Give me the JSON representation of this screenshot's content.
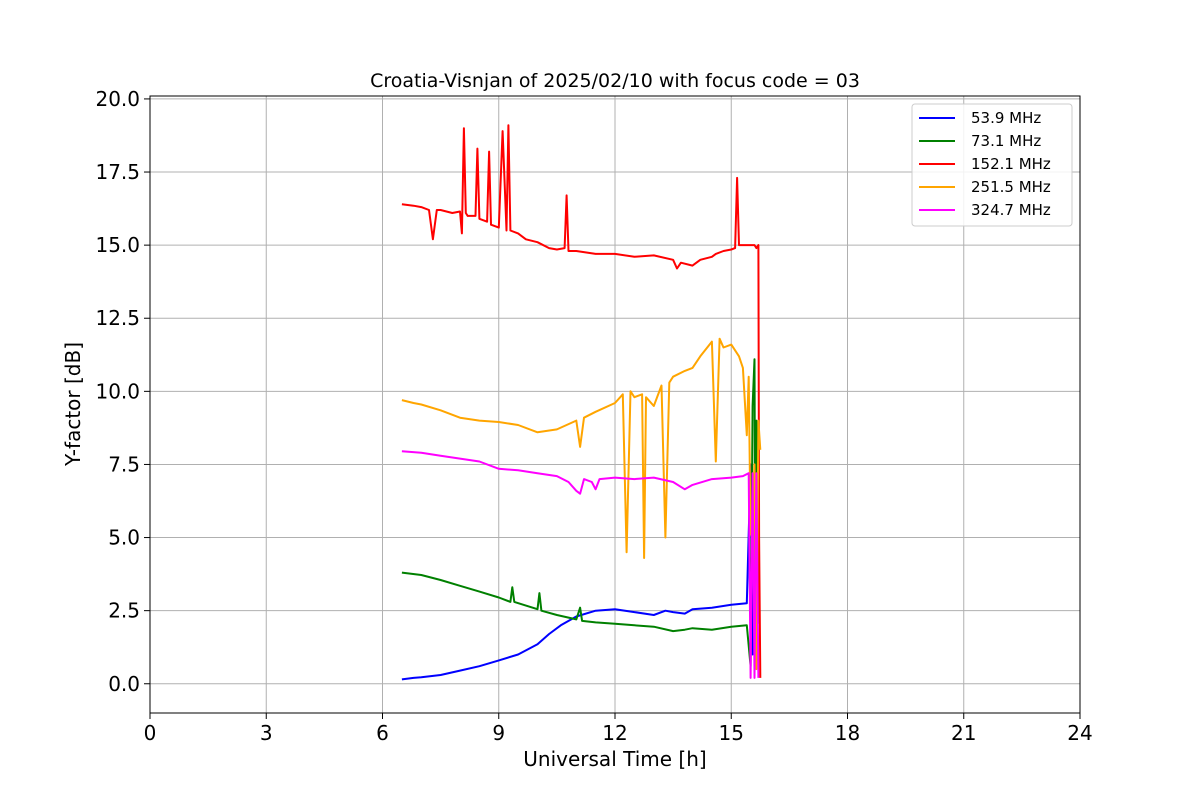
{
  "chart_data": {
    "type": "line",
    "title": "Croatia-Visnjan of 2025/02/10 with focus code = 03",
    "xlabel": "Universal Time [h]",
    "ylabel": "Y-factor [dB]",
    "xlim": [
      0,
      24
    ],
    "ylim": [
      -1.0,
      20.1
    ],
    "xticks": [
      0,
      3,
      6,
      9,
      12,
      15,
      18,
      21,
      24
    ],
    "xtick_labels": [
      "0",
      "3",
      "6",
      "9",
      "12",
      "15",
      "18",
      "21",
      "24"
    ],
    "yticks": [
      0.0,
      2.5,
      5.0,
      7.5,
      10.0,
      12.5,
      15.0,
      17.5,
      20.0
    ],
    "ytick_labels": [
      "0.0",
      "2.5",
      "5.0",
      "7.5",
      "10.0",
      "12.5",
      "15.0",
      "17.5",
      "20.0"
    ],
    "grid": true,
    "legend_position": "top-right",
    "series": [
      {
        "name": "  53.9 MHz",
        "color": "#0000ff",
        "x": [
          6.5,
          6.8,
          7.0,
          7.5,
          8.0,
          8.5,
          9.0,
          9.5,
          10.0,
          10.3,
          10.6,
          11.0,
          11.5,
          12.0,
          12.5,
          13.0,
          13.3,
          13.5,
          13.8,
          14.0,
          14.5,
          15.0,
          15.4,
          15.5,
          15.55,
          15.6,
          15.65,
          15.7
        ],
        "y": [
          0.15,
          0.2,
          0.22,
          0.3,
          0.45,
          0.6,
          0.8,
          1.0,
          1.35,
          1.7,
          2.0,
          2.3,
          2.5,
          2.55,
          2.45,
          2.35,
          2.5,
          2.45,
          2.4,
          2.55,
          2.6,
          2.7,
          2.75,
          7.5,
          1.0,
          3.8,
          2.75,
          2.7
        ]
      },
      {
        "name": "  73.1 MHz",
        "color": "#008000",
        "x": [
          6.5,
          7.0,
          7.5,
          8.0,
          8.5,
          9.0,
          9.3,
          9.35,
          9.4,
          10.0,
          10.05,
          10.1,
          10.5,
          11.0,
          11.1,
          11.15,
          11.5,
          12.0,
          12.5,
          13.0,
          13.5,
          13.8,
          14.0,
          14.5,
          15.0,
          15.4,
          15.5,
          15.55,
          15.6,
          15.62,
          15.65,
          15.7
        ],
        "y": [
          3.8,
          3.72,
          3.55,
          3.35,
          3.15,
          2.95,
          2.8,
          3.3,
          2.8,
          2.55,
          3.1,
          2.5,
          2.35,
          2.2,
          2.6,
          2.15,
          2.1,
          2.05,
          2.0,
          1.95,
          1.8,
          1.85,
          1.9,
          1.85,
          1.95,
          2.0,
          0.6,
          9.5,
          11.1,
          3.0,
          9.0,
          2.05
        ]
      },
      {
        "name": "152.1 MHz",
        "color": "#ff0000",
        "x": [
          6.5,
          6.8,
          7.0,
          7.2,
          7.3,
          7.4,
          7.5,
          7.8,
          8.0,
          8.05,
          8.1,
          8.15,
          8.2,
          8.4,
          8.45,
          8.5,
          8.7,
          8.75,
          8.8,
          9.0,
          9.1,
          9.2,
          9.25,
          9.3,
          9.5,
          9.7,
          10.0,
          10.3,
          10.5,
          10.7,
          10.75,
          10.8,
          11.0,
          11.5,
          12.0,
          12.5,
          13.0,
          13.5,
          13.6,
          13.7,
          14.0,
          14.2,
          14.5,
          14.6,
          14.8,
          15.0,
          15.1,
          15.15,
          15.2,
          15.4,
          15.6,
          15.65,
          15.7,
          15.72,
          15.75
        ],
        "y": [
          16.4,
          16.35,
          16.3,
          16.2,
          15.2,
          16.2,
          16.2,
          16.1,
          16.15,
          15.4,
          19.0,
          16.1,
          16.0,
          16.0,
          18.3,
          15.9,
          15.8,
          18.2,
          15.7,
          15.6,
          18.9,
          15.5,
          19.1,
          15.5,
          15.4,
          15.2,
          15.1,
          14.9,
          14.85,
          14.9,
          16.7,
          14.8,
          14.8,
          14.7,
          14.7,
          14.6,
          14.65,
          14.5,
          14.2,
          14.4,
          14.3,
          14.5,
          14.6,
          14.7,
          14.8,
          14.85,
          14.9,
          17.3,
          15.0,
          15.0,
          15.0,
          14.9,
          15.0,
          5.0,
          0.2
        ]
      },
      {
        "name": "251.5 MHz",
        "color": "#ffa500",
        "x": [
          6.5,
          6.8,
          7.0,
          7.5,
          8.0,
          8.5,
          9.0,
          9.5,
          10.0,
          10.5,
          11.0,
          11.1,
          11.2,
          11.5,
          12.0,
          12.2,
          12.3,
          12.4,
          12.5,
          12.7,
          12.75,
          12.8,
          13.0,
          13.2,
          13.3,
          13.4,
          13.5,
          13.8,
          14.0,
          14.2,
          14.5,
          14.6,
          14.7,
          14.8,
          15.0,
          15.2,
          15.3,
          15.4,
          15.45,
          15.5,
          15.55,
          15.6,
          15.65,
          15.7,
          15.75
        ],
        "y": [
          9.7,
          9.6,
          9.55,
          9.35,
          9.1,
          9.0,
          8.95,
          8.85,
          8.6,
          8.7,
          9.0,
          8.1,
          9.1,
          9.3,
          9.6,
          9.9,
          4.5,
          10.0,
          9.8,
          9.9,
          4.3,
          9.8,
          9.5,
          10.2,
          5.0,
          10.3,
          10.5,
          10.7,
          10.8,
          11.2,
          11.7,
          7.6,
          11.8,
          11.5,
          11.6,
          11.2,
          10.8,
          8.5,
          10.5,
          5.1,
          5.3,
          7.5,
          0.5,
          9.0,
          8.0
        ]
      },
      {
        "name": "324.7 MHz",
        "color": "#ff00ff",
        "x": [
          6.5,
          7.0,
          7.5,
          8.0,
          8.5,
          9.0,
          9.5,
          10.0,
          10.5,
          10.8,
          11.0,
          11.1,
          11.2,
          11.4,
          11.5,
          11.6,
          12.0,
          12.5,
          13.0,
          13.5,
          13.8,
          14.0,
          14.5,
          15.0,
          15.3,
          15.45,
          15.5,
          15.55,
          15.6,
          15.65,
          15.7
        ],
        "y": [
          7.95,
          7.9,
          7.8,
          7.7,
          7.6,
          7.35,
          7.3,
          7.2,
          7.1,
          6.9,
          6.6,
          6.5,
          7.0,
          6.9,
          6.65,
          7.0,
          7.05,
          7.0,
          7.05,
          6.9,
          6.65,
          6.8,
          7.0,
          7.05,
          7.1,
          7.2,
          0.2,
          7.2,
          0.2,
          7.2,
          0.2
        ]
      }
    ]
  }
}
